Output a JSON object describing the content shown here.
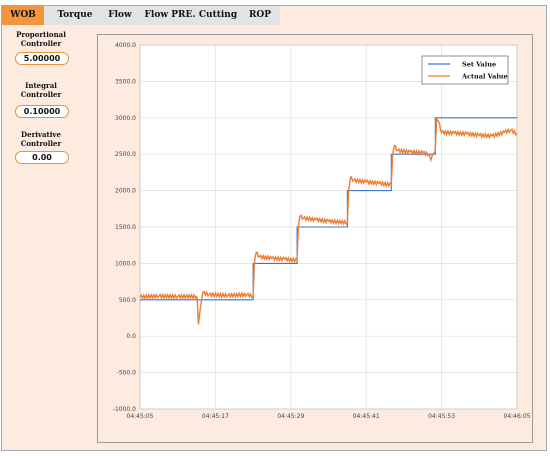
{
  "tabs": [
    {
      "label": "WOB",
      "active": true
    },
    {
      "label": "Torque",
      "active": false
    },
    {
      "label": "Flow",
      "active": false
    },
    {
      "label": "Flow PRE.",
      "active": false
    },
    {
      "label": "Cutting",
      "active": false
    },
    {
      "label": "ROP",
      "active": false
    }
  ],
  "controllers": [
    {
      "label_line1": "Proportional",
      "label_line2": "Controller",
      "value": "5.00000"
    },
    {
      "label_line1": "Integral",
      "label_line2": "Controller",
      "value": "0.10000"
    },
    {
      "label_line1": "Derivative",
      "label_line2": "Controller",
      "value": "0.00"
    }
  ],
  "chart_data": {
    "type": "line",
    "xlabel": "",
    "ylabel": "",
    "x_ticks": [
      "04:45:05",
      "04:45:17",
      "04:45:29",
      "04:45:41",
      "04:45:53",
      "04:46:05"
    ],
    "y_ticks": [
      "4000.0",
      "3500.0",
      "3000.0",
      "2500.0",
      "2000.0",
      "1500.0",
      "1000.0",
      "500.0",
      "0.0",
      "-500.0",
      "-1000.0"
    ],
    "ylim": [
      -1000,
      4000
    ],
    "xlim_seconds": [
      0,
      60
    ],
    "grid": true,
    "legend_position": "top-right",
    "series": [
      {
        "name": "Set Value",
        "color": "#4472c4",
        "step": true,
        "points": [
          [
            0,
            500
          ],
          [
            18,
            500
          ],
          [
            18,
            1000
          ],
          [
            25,
            1000
          ],
          [
            25,
            1500
          ],
          [
            33,
            1500
          ],
          [
            33,
            2000
          ],
          [
            40,
            2000
          ],
          [
            40,
            2500
          ],
          [
            47,
            2500
          ],
          [
            47,
            3000
          ],
          [
            60,
            3000
          ]
        ]
      },
      {
        "name": "Actual Value",
        "color": "#ed7d31",
        "points": [
          [
            0,
            540
          ],
          [
            3,
            550
          ],
          [
            6,
            545
          ],
          [
            9,
            545
          ],
          [
            9.1,
            520
          ],
          [
            9.3,
            160
          ],
          [
            9.6,
            380
          ],
          [
            10,
            600
          ],
          [
            11,
            570
          ],
          [
            14,
            560
          ],
          [
            17,
            570
          ],
          [
            18,
            550
          ],
          [
            18.2,
            1000
          ],
          [
            18.5,
            1150
          ],
          [
            19,
            1090
          ],
          [
            21,
            1070
          ],
          [
            23,
            1060
          ],
          [
            25,
            1040
          ],
          [
            25.2,
            1500
          ],
          [
            25.5,
            1650
          ],
          [
            26,
            1620
          ],
          [
            28,
            1600
          ],
          [
            30,
            1580
          ],
          [
            33,
            1560
          ],
          [
            33.2,
            2000
          ],
          [
            33.5,
            2180
          ],
          [
            34,
            2140
          ],
          [
            36,
            2120
          ],
          [
            38,
            2100
          ],
          [
            40,
            2080
          ],
          [
            40.2,
            2500
          ],
          [
            40.5,
            2620
          ],
          [
            41,
            2550
          ],
          [
            43,
            2530
          ],
          [
            45,
            2520
          ],
          [
            46,
            2500
          ],
          [
            46.3,
            2420
          ],
          [
            46.7,
            2500
          ],
          [
            47,
            2550
          ],
          [
            47.2,
            2980
          ],
          [
            47.5,
            2950
          ],
          [
            48,
            2800
          ],
          [
            50,
            2790
          ],
          [
            52,
            2780
          ],
          [
            54,
            2760
          ],
          [
            56,
            2750
          ],
          [
            58,
            2800
          ],
          [
            59,
            2830
          ],
          [
            60,
            2780
          ]
        ]
      }
    ]
  }
}
